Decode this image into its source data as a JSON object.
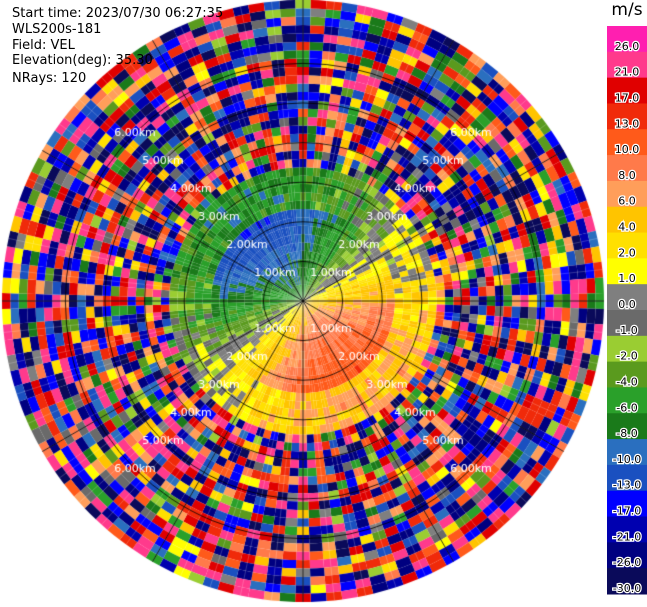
{
  "header": {
    "start_time": "Start time: 2023/07/30 06:27:35",
    "instrument": "WLS200s-181",
    "field": "Field: VEL",
    "elevation": "Elevation(deg): 35.30",
    "nrays": "NRays: 120"
  },
  "colorbar": {
    "unit": "m/s",
    "ticks": [
      "26.0",
      "21.0",
      "17.0",
      "13.0",
      "10.0",
      "8.0",
      "6.0",
      "4.0",
      "2.0",
      "1.0",
      "0.0",
      "-1.0",
      "-2.0",
      "-4.0",
      "-6.0",
      "-8.0",
      "-10.0",
      "-13.0",
      "-17.0",
      "-21.0",
      "-26.0",
      "-30.0"
    ],
    "colors": [
      "#ff1fb0",
      "#ff3a8c",
      "#e00000",
      "#f02a0a",
      "#ff5a1a",
      "#ff7a4a",
      "#ff9e5a",
      "#ffc400",
      "#ffe000",
      "#ffff00",
      "#7f7f7f",
      "#6a6a6a",
      "#9acd32",
      "#5a9a1e",
      "#2aa02a",
      "#1a7a1a",
      "#2a6fbf",
      "#1a50c0",
      "#0000ff",
      "#0000b0",
      "#000080",
      "#0a0a5a"
    ]
  },
  "chart_data": {
    "type": "heatmap",
    "subtype": "ppi-polar",
    "field": "VEL",
    "units": "m/s",
    "elevation_deg": 35.3,
    "nrays": 120,
    "range_ring_labels": [
      "1.00km",
      "2.00km",
      "3.00km",
      "4.00km",
      "5.00km",
      "6.00km"
    ],
    "range_rings_km": [
      1,
      2,
      3,
      4,
      5,
      6
    ],
    "color_range": [
      -30.0,
      26.0
    ],
    "patterns": [
      {
        "region": "north-west",
        "approx_velocity": -9.0,
        "description_value": "negative"
      },
      {
        "region": "south-east",
        "approx_velocity": 10.0,
        "description_value": "positive"
      }
    ]
  }
}
